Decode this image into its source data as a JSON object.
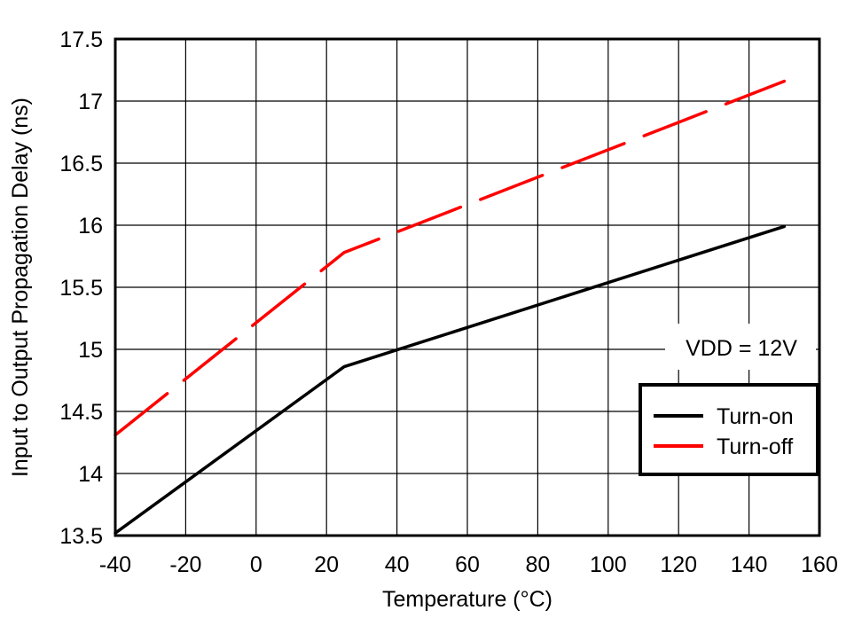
{
  "chart_data": {
    "type": "line",
    "title": "",
    "xlabel": "Temperature (°C)",
    "ylabel": "Input to Output Propagation Delay (ns)",
    "xlim": [
      -40,
      160
    ],
    "ylim": [
      13.5,
      17.5
    ],
    "xticks": [
      -40,
      -20,
      0,
      20,
      40,
      60,
      80,
      100,
      120,
      140,
      160
    ],
    "yticks": [
      "13.5",
      "14",
      "14.5",
      "15",
      "15.5",
      "16",
      "16.5",
      "17",
      "17.5"
    ],
    "grid": true,
    "legend_position": "right",
    "annotation": "VDD = 12V",
    "series": [
      {
        "name": "Turn-on",
        "color": "#000000",
        "style": "solid",
        "x": [
          -40,
          25,
          150
        ],
        "y": [
          13.52,
          14.86,
          15.99
        ]
      },
      {
        "name": "Turn-off",
        "color": "#ff0000",
        "style": "dashed",
        "x": [
          -40,
          25,
          150
        ],
        "y": [
          14.31,
          15.78,
          17.16
        ]
      }
    ]
  }
}
